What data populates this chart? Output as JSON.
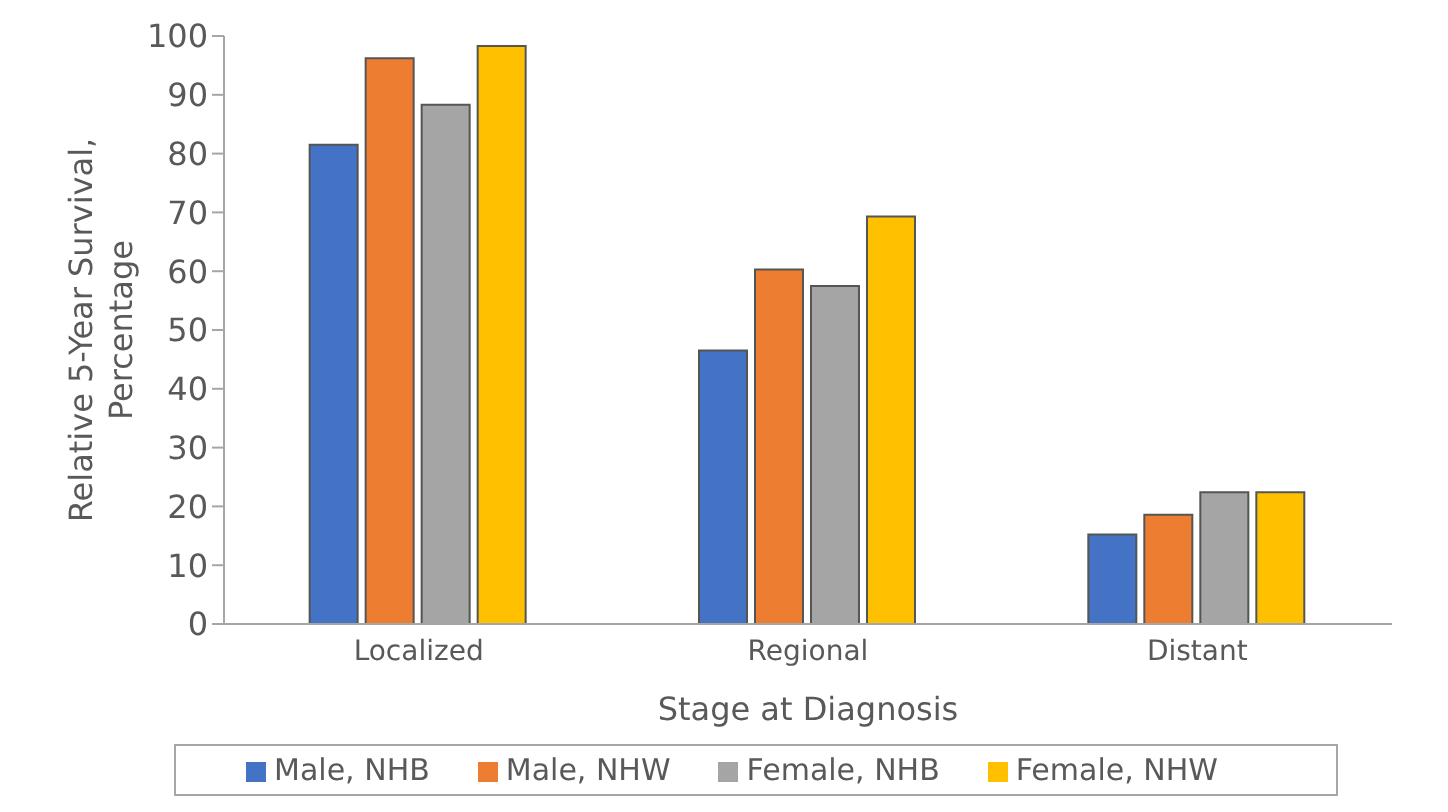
{
  "chart_data": {
    "type": "bar",
    "xlabel": "Stage at Diagnosis",
    "ylabel": "Relative 5-Year Survival, Percentage",
    "categories": [
      "Localized",
      "Regional",
      "Distant"
    ],
    "series": [
      {
        "name": "Male, NHB",
        "color": "#4472c4",
        "values": [
          81.5,
          46.5,
          15.2
        ]
      },
      {
        "name": "Male, NHW",
        "color": "#ed7d31",
        "values": [
          96.2,
          60.3,
          18.6
        ]
      },
      {
        "name": "Female, NHB",
        "color": "#a5a5a5",
        "values": [
          88.3,
          57.5,
          22.4
        ]
      },
      {
        "name": "Female, NHW",
        "color": "#ffc000",
        "values": [
          98.3,
          69.3,
          22.4
        ]
      }
    ],
    "ylim": [
      0,
      100
    ],
    "yticks": [
      0,
      10,
      20,
      30,
      40,
      50,
      60,
      70,
      80,
      90,
      100
    ],
    "grid": false,
    "legend": "bottom"
  }
}
